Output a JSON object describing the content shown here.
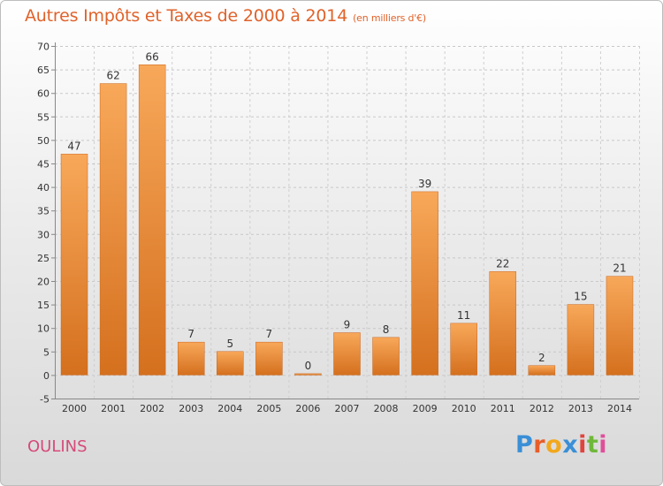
{
  "header": {
    "title": "Autres Impôts et Taxes de 2000 à 2014",
    "subtitle": "(en milliers d'€)"
  },
  "footer": {
    "location": "OULINS",
    "logo_text": "Proxiti",
    "logo_colors": [
      "#3a8fd6",
      "#e85d2a",
      "#f2a81c",
      "#3a8fd6",
      "#e0443c",
      "#6fb83b",
      "#e04f9a"
    ]
  },
  "colors": {
    "title": "#e0622a",
    "location": "#d64a7b",
    "bar_top": "#f8a85a",
    "bar_bottom": "#d4701e"
  },
  "chart_data": {
    "type": "bar",
    "categories": [
      "2000",
      "2001",
      "2002",
      "2003",
      "2004",
      "2005",
      "2006",
      "2007",
      "2008",
      "2009",
      "2010",
      "2011",
      "2012",
      "2013",
      "2014"
    ],
    "values": [
      47,
      62,
      66,
      7,
      5,
      7,
      0,
      9,
      8,
      39,
      11,
      22,
      2,
      15,
      21
    ],
    "title": "Autres Impôts et Taxes de 2000 à 2014",
    "subtitle": "(en milliers d'€)",
    "ylim": [
      -5,
      70
    ],
    "yticks": [
      -5,
      0,
      5,
      10,
      15,
      20,
      25,
      30,
      35,
      40,
      45,
      50,
      55,
      60,
      65,
      70
    ],
    "grid": true
  }
}
